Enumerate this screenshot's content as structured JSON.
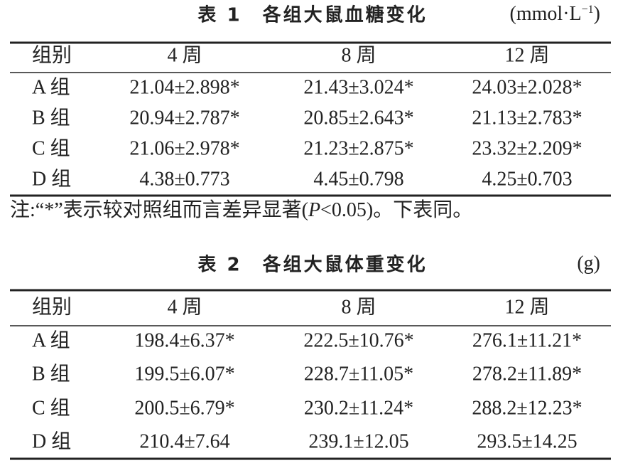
{
  "tables": [
    {
      "title": "表 1　各组大鼠血糖变化",
      "unit": {
        "main": "(mmol·L",
        "sup": "−1",
        "close": ")"
      },
      "headers": [
        "组别",
        "4 周",
        "8 周",
        "12 周"
      ],
      "rows": [
        [
          "A 组",
          "21.04±2.898*",
          "21.43±3.024*",
          "24.03±2.028*"
        ],
        [
          "B 组",
          "20.94±2.787*",
          "20.85±2.643*",
          "21.13±2.783*"
        ],
        [
          "C 组",
          "21.06±2.978*",
          "21.23±2.875*",
          "23.32±2.209*"
        ],
        [
          "D 组",
          "4.38±0.773",
          "4.45±0.798",
          "4.25±0.703"
        ]
      ]
    },
    {
      "title": "表 2　各组大鼠体重变化",
      "unit": {
        "main": "(g)"
      },
      "headers": [
        "组别",
        "4 周",
        "8 周",
        "12 周"
      ],
      "rows": [
        [
          "A 组",
          "198.4±6.37*",
          "222.5±10.76*",
          "276.1±11.21*"
        ],
        [
          "B 组",
          "199.5±6.07*",
          "228.7±11.05*",
          "278.2±11.89*"
        ],
        [
          "C 组",
          "200.5±6.79*",
          "230.2±11.24*",
          "288.2±12.23*"
        ],
        [
          "D 组",
          "210.4±7.64",
          "239.1±12.05",
          "293.5±14.25"
        ]
      ]
    }
  ],
  "note": {
    "prefix": "注:“*”表示较对照组而言差异显著(",
    "italic": "P",
    "suffix": "<0.05)。下表同。"
  }
}
